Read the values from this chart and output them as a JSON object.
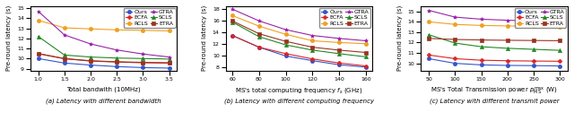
{
  "plot1": {
    "xlabel": "Total bandwith (10MHz)",
    "ylabel": "Pre-round latency (s)",
    "x": [
      1.0,
      1.5,
      2.0,
      2.5,
      3.0,
      3.5
    ],
    "xlim": [
      0.85,
      3.65
    ],
    "ylim": [
      8.8,
      15.2
    ],
    "yticks": [
      9,
      10,
      11,
      12,
      13,
      14,
      15
    ],
    "series": [
      {
        "name": "Ours",
        "color": "#3355cc",
        "marker": "o",
        "y": [
          10.0,
          9.55,
          9.35,
          9.2,
          9.1,
          9.05
        ]
      },
      {
        "name": "RCLS",
        "color": "#f0a020",
        "marker": "o",
        "y": [
          13.8,
          13.05,
          12.95,
          12.85,
          12.8,
          12.75
        ]
      },
      {
        "name": "SCLS",
        "color": "#228822",
        "marker": "^",
        "y": [
          12.2,
          10.35,
          10.15,
          10.05,
          10.0,
          9.95
        ]
      },
      {
        "name": "ECFA",
        "color": "#dd2222",
        "marker": "P",
        "y": [
          10.5,
          10.0,
          9.78,
          9.68,
          9.62,
          9.58
        ]
      },
      {
        "name": "GTRA",
        "color": "#9922aa",
        "marker": "*",
        "y": [
          14.7,
          12.35,
          11.45,
          10.85,
          10.45,
          10.15
        ]
      },
      {
        "name": "ETRA",
        "color": "#993322",
        "marker": "s",
        "y": [
          10.48,
          9.98,
          9.75,
          9.65,
          9.58,
          9.55
        ]
      }
    ],
    "caption": "(a) Latency with different bandwidth"
  },
  "plot2": {
    "xlabel": "MS's total computing frequency $f_s$ (GHz)",
    "ylabel": "Pre-round latency (s)",
    "x": [
      60,
      80,
      100,
      120,
      140,
      160
    ],
    "xlim": [
      55,
      165
    ],
    "ylim": [
      7.5,
      18.5
    ],
    "yticks": [
      8,
      10,
      12,
      14,
      16,
      18
    ],
    "series": [
      {
        "name": "Ours",
        "color": "#3355cc",
        "marker": "o",
        "y": [
          13.5,
          11.5,
          10.0,
          9.2,
          8.5,
          8.1
        ]
      },
      {
        "name": "RCLS",
        "color": "#f0a020",
        "marker": "o",
        "y": [
          16.9,
          15.1,
          13.7,
          12.6,
          12.3,
          12.1
        ]
      },
      {
        "name": "SCLS",
        "color": "#228822",
        "marker": "^",
        "y": [
          15.8,
          13.3,
          11.9,
          11.0,
          10.4,
          9.85
        ]
      },
      {
        "name": "ECFA",
        "color": "#dd2222",
        "marker": "P",
        "y": [
          13.5,
          11.5,
          10.4,
          9.5,
          8.8,
          8.3
        ]
      },
      {
        "name": "GTRA",
        "color": "#9922aa",
        "marker": "*",
        "y": [
          18.0,
          16.0,
          14.5,
          13.5,
          13.0,
          12.6
        ]
      },
      {
        "name": "ETRA",
        "color": "#993322",
        "marker": "s",
        "y": [
          16.0,
          13.8,
          12.5,
          11.5,
          11.0,
          10.6
        ]
      }
    ],
    "caption": "(b) Latency with different computing frequency"
  },
  "plot3": {
    "xlabel": "MS's Total Transmission power $p_{\\mathrm{MS}}^{\\mathrm{max}}$ (W)",
    "ylabel": "Pre-round latency (s)",
    "x": [
      50,
      100,
      150,
      200,
      250,
      300
    ],
    "xlim": [
      35,
      315
    ],
    "ylim": [
      9.3,
      15.5
    ],
    "yticks": [
      10,
      11,
      12,
      13,
      14,
      15
    ],
    "series": [
      {
        "name": "Ours",
        "color": "#3355cc",
        "marker": "o",
        "y": [
          10.45,
          10.0,
          9.85,
          9.8,
          9.78,
          9.75
        ]
      },
      {
        "name": "RCLS",
        "color": "#f0a020",
        "marker": "o",
        "y": [
          14.0,
          13.75,
          13.65,
          13.6,
          13.57,
          13.55
        ]
      },
      {
        "name": "SCLS",
        "color": "#228822",
        "marker": "^",
        "y": [
          12.75,
          11.95,
          11.6,
          11.45,
          11.35,
          11.25
        ]
      },
      {
        "name": "ECFA",
        "color": "#dd2222",
        "marker": "P",
        "y": [
          10.8,
          10.45,
          10.3,
          10.25,
          10.22,
          10.2
        ]
      },
      {
        "name": "GTRA",
        "color": "#9922aa",
        "marker": "*",
        "y": [
          15.1,
          14.45,
          14.25,
          14.15,
          14.08,
          14.0
        ]
      },
      {
        "name": "ETRA",
        "color": "#993322",
        "marker": "s",
        "y": [
          12.4,
          12.3,
          12.25,
          12.22,
          12.2,
          12.18
        ]
      }
    ],
    "caption": "(c) Latency with different transmit power"
  },
  "legend_order": [
    "Ours",
    "ECFA",
    "RCLS",
    "GTRA",
    "SCLS",
    "ETRA"
  ],
  "markersize": 3.0,
  "linewidth": 0.8,
  "fontsize_axis": 5.0,
  "fontsize_tick": 4.5,
  "fontsize_legend": 4.5,
  "fontsize_caption": 5.0
}
